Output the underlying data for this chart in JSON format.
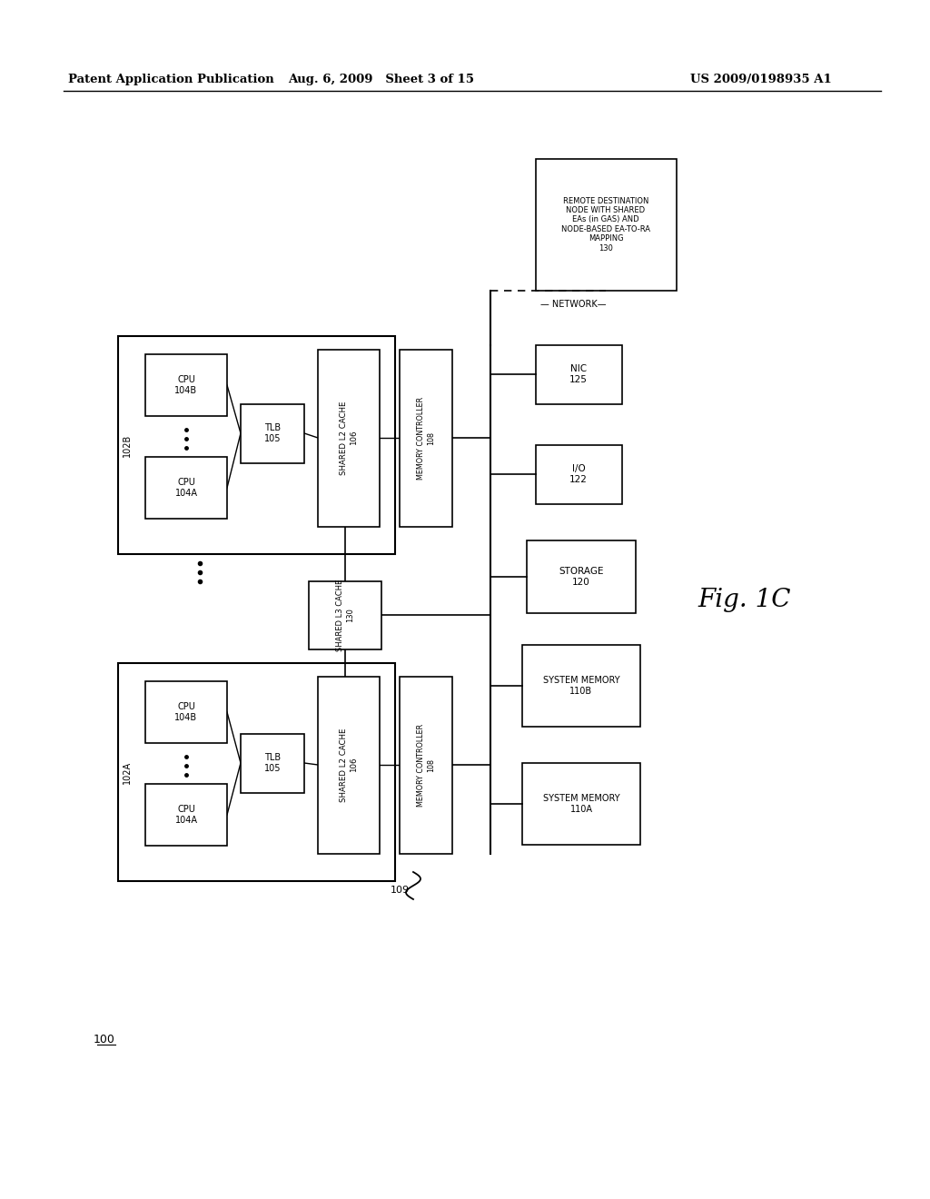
{
  "header_left": "Patent Application Publication",
  "header_mid": "Aug. 6, 2009   Sheet 3 of 15",
  "header_right": "US 2009/0198935 A1",
  "background": "#ffffff"
}
